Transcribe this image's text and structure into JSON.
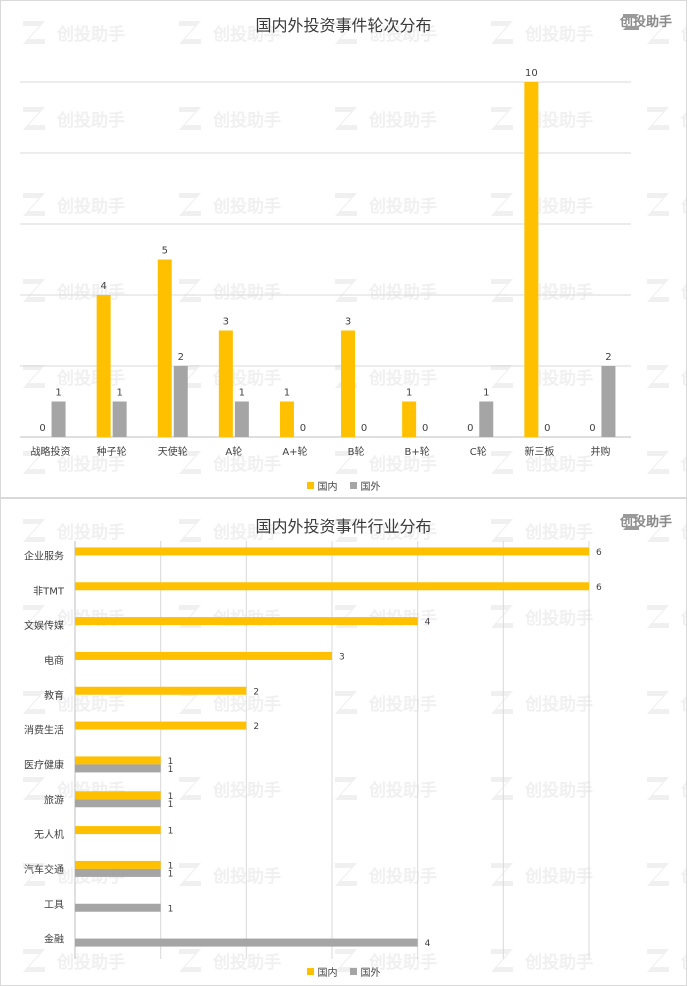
{
  "brand": {
    "name": "创投助手",
    "icon": "z-logo-icon"
  },
  "colors": {
    "domestic": "#FFC000",
    "foreign": "#A5A5A5",
    "grid": "#d9d9d9",
    "axis": "#bfbfbf",
    "watermark": "#f0f0f0"
  },
  "legend": {
    "domestic": "国内",
    "foreign": "国外"
  },
  "chart_data": [
    {
      "type": "bar",
      "title": "国内外投资事件轮次分布",
      "categories": [
        "战略投资",
        "种子轮",
        "天使轮",
        "A轮",
        "A+轮",
        "B轮",
        "B+轮",
        "C轮",
        "新三板",
        "并购"
      ],
      "series": [
        {
          "name": "国内",
          "values": [
            0,
            4,
            5,
            3,
            1,
            3,
            1,
            0,
            10,
            0
          ]
        },
        {
          "name": "国外",
          "values": [
            1,
            1,
            2,
            1,
            0,
            0,
            0,
            1,
            0,
            2
          ]
        }
      ],
      "ylim": [
        0,
        10
      ],
      "grid": true,
      "legend_position": "bottom"
    },
    {
      "type": "bar",
      "orientation": "horizontal",
      "title": "国内外投资事件行业分布",
      "categories": [
        "企业服务",
        "非TMT",
        "文娱传媒",
        "电商",
        "教育",
        "消费生活",
        "医疗健康",
        "旅游",
        "无人机",
        "汽车交通",
        "工具",
        "金融"
      ],
      "series": [
        {
          "name": "国内",
          "values": [
            6,
            6,
            4,
            3,
            2,
            2,
            1,
            1,
            1,
            1,
            null,
            null
          ]
        },
        {
          "name": "国外",
          "values": [
            null,
            null,
            null,
            null,
            null,
            null,
            1,
            1,
            null,
            1,
            1,
            4
          ]
        }
      ],
      "xlim": [
        0,
        6
      ],
      "grid": true,
      "legend_position": "bottom"
    }
  ]
}
